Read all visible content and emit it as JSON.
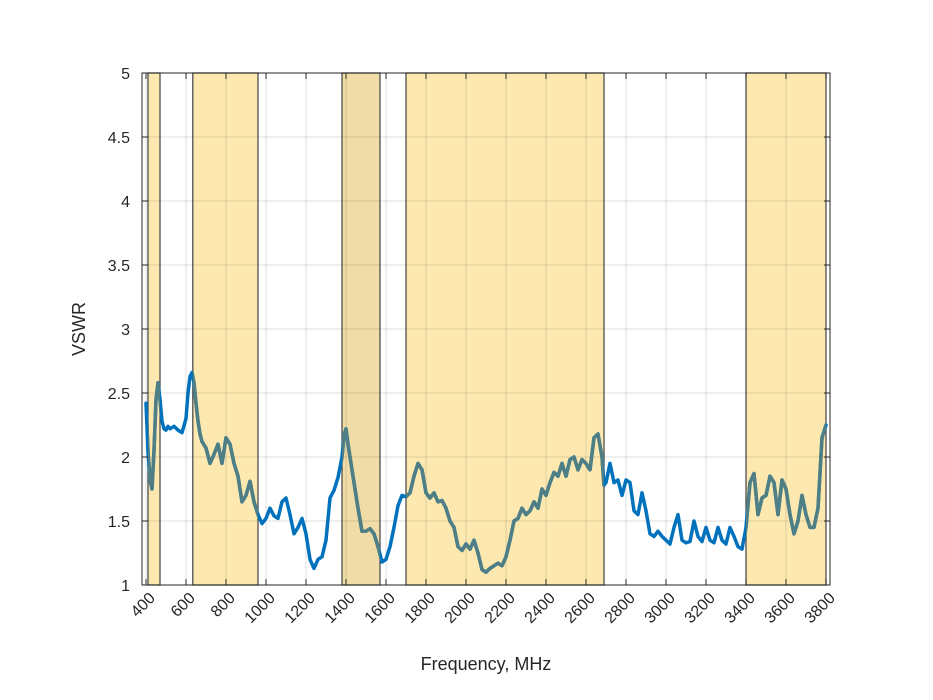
{
  "chart_data": {
    "type": "line",
    "xlabel": "Frequency, MHz",
    "ylabel": "VSWR",
    "xlim": [
      380,
      3820
    ],
    "ylim": [
      1,
      5
    ],
    "x_ticks": [
      400,
      600,
      800,
      1000,
      1200,
      1400,
      1600,
      1800,
      2000,
      2200,
      2400,
      2600,
      2800,
      3000,
      3200,
      3400,
      3600,
      3800
    ],
    "y_ticks": [
      1,
      1.5,
      2,
      2.5,
      3,
      3.5,
      4,
      4.5,
      5
    ],
    "y_tick_labels": [
      "1",
      "1.5",
      "2",
      "2.5",
      "3",
      "3.5",
      "4",
      "4.5",
      "5"
    ],
    "grid": true,
    "highlight_bands": [
      {
        "start": 410,
        "end": 470,
        "color": "#fde9b0"
      },
      {
        "start": 634,
        "end": 960,
        "color": "#fde9b0"
      },
      {
        "start": 1380,
        "end": 1570,
        "color": "#efdca6"
      },
      {
        "start": 1700,
        "end": 2690,
        "color": "#fde9b0"
      },
      {
        "start": 3400,
        "end": 3800,
        "color": "#fde9b0"
      }
    ],
    "series": [
      {
        "color": "#0072bd",
        "band_color": "#4f7f84",
        "points": [
          [
            400,
            2.42
          ],
          [
            410,
            2.05
          ],
          [
            420,
            1.82
          ],
          [
            430,
            1.75
          ],
          [
            440,
            2.05
          ],
          [
            450,
            2.45
          ],
          [
            460,
            2.58
          ],
          [
            470,
            2.45
          ],
          [
            480,
            2.28
          ],
          [
            490,
            2.22
          ],
          [
            500,
            2.21
          ],
          [
            510,
            2.24
          ],
          [
            520,
            2.22
          ],
          [
            540,
            2.24
          ],
          [
            560,
            2.21
          ],
          [
            580,
            2.19
          ],
          [
            600,
            2.3
          ],
          [
            610,
            2.5
          ],
          [
            620,
            2.63
          ],
          [
            630,
            2.66
          ],
          [
            640,
            2.58
          ],
          [
            650,
            2.42
          ],
          [
            660,
            2.28
          ],
          [
            670,
            2.18
          ],
          [
            680,
            2.12
          ],
          [
            700,
            2.07
          ],
          [
            720,
            1.95
          ],
          [
            740,
            2.02
          ],
          [
            760,
            2.1
          ],
          [
            780,
            1.95
          ],
          [
            800,
            2.15
          ],
          [
            820,
            2.1
          ],
          [
            840,
            1.95
          ],
          [
            860,
            1.85
          ],
          [
            880,
            1.65
          ],
          [
            900,
            1.7
          ],
          [
            920,
            1.81
          ],
          [
            940,
            1.65
          ],
          [
            960,
            1.55
          ],
          [
            980,
            1.48
          ],
          [
            1000,
            1.52
          ],
          [
            1020,
            1.6
          ],
          [
            1040,
            1.54
          ],
          [
            1060,
            1.52
          ],
          [
            1080,
            1.65
          ],
          [
            1100,
            1.68
          ],
          [
            1120,
            1.55
          ],
          [
            1140,
            1.4
          ],
          [
            1160,
            1.45
          ],
          [
            1180,
            1.52
          ],
          [
            1200,
            1.4
          ],
          [
            1220,
            1.2
          ],
          [
            1240,
            1.13
          ],
          [
            1260,
            1.2
          ],
          [
            1280,
            1.22
          ],
          [
            1300,
            1.35
          ],
          [
            1320,
            1.68
          ],
          [
            1340,
            1.74
          ],
          [
            1360,
            1.84
          ],
          [
            1380,
            2.0
          ],
          [
            1390,
            2.17
          ],
          [
            1400,
            2.22
          ],
          [
            1410,
            2.1
          ],
          [
            1420,
            2.0
          ],
          [
            1440,
            1.8
          ],
          [
            1460,
            1.6
          ],
          [
            1480,
            1.42
          ],
          [
            1500,
            1.42
          ],
          [
            1520,
            1.44
          ],
          [
            1540,
            1.4
          ],
          [
            1560,
            1.3
          ],
          [
            1580,
            1.18
          ],
          [
            1600,
            1.2
          ],
          [
            1620,
            1.3
          ],
          [
            1640,
            1.45
          ],
          [
            1660,
            1.62
          ],
          [
            1680,
            1.7
          ],
          [
            1700,
            1.69
          ],
          [
            1720,
            1.72
          ],
          [
            1740,
            1.85
          ],
          [
            1760,
            1.95
          ],
          [
            1780,
            1.9
          ],
          [
            1800,
            1.72
          ],
          [
            1820,
            1.68
          ],
          [
            1840,
            1.72
          ],
          [
            1860,
            1.65
          ],
          [
            1880,
            1.66
          ],
          [
            1900,
            1.6
          ],
          [
            1920,
            1.5
          ],
          [
            1940,
            1.45
          ],
          [
            1960,
            1.3
          ],
          [
            1980,
            1.27
          ],
          [
            2000,
            1.32
          ],
          [
            2020,
            1.28
          ],
          [
            2040,
            1.35
          ],
          [
            2060,
            1.25
          ],
          [
            2080,
            1.12
          ],
          [
            2100,
            1.1
          ],
          [
            2120,
            1.13
          ],
          [
            2140,
            1.15
          ],
          [
            2160,
            1.17
          ],
          [
            2180,
            1.15
          ],
          [
            2200,
            1.22
          ],
          [
            2220,
            1.35
          ],
          [
            2240,
            1.5
          ],
          [
            2260,
            1.52
          ],
          [
            2280,
            1.6
          ],
          [
            2300,
            1.55
          ],
          [
            2320,
            1.58
          ],
          [
            2340,
            1.65
          ],
          [
            2360,
            1.6
          ],
          [
            2380,
            1.75
          ],
          [
            2400,
            1.7
          ],
          [
            2420,
            1.8
          ],
          [
            2440,
            1.88
          ],
          [
            2460,
            1.85
          ],
          [
            2480,
            1.95
          ],
          [
            2500,
            1.85
          ],
          [
            2520,
            1.98
          ],
          [
            2540,
            2.0
          ],
          [
            2560,
            1.9
          ],
          [
            2580,
            1.98
          ],
          [
            2600,
            1.95
          ],
          [
            2620,
            1.9
          ],
          [
            2640,
            2.15
          ],
          [
            2660,
            2.18
          ],
          [
            2680,
            2.0
          ],
          [
            2690,
            1.78
          ],
          [
            2700,
            1.8
          ],
          [
            2720,
            1.95
          ],
          [
            2740,
            1.8
          ],
          [
            2760,
            1.82
          ],
          [
            2780,
            1.7
          ],
          [
            2800,
            1.82
          ],
          [
            2820,
            1.8
          ],
          [
            2840,
            1.58
          ],
          [
            2860,
            1.55
          ],
          [
            2880,
            1.72
          ],
          [
            2900,
            1.58
          ],
          [
            2920,
            1.4
          ],
          [
            2940,
            1.38
          ],
          [
            2960,
            1.42
          ],
          [
            2980,
            1.38
          ],
          [
            3000,
            1.35
          ],
          [
            3020,
            1.32
          ],
          [
            3040,
            1.45
          ],
          [
            3060,
            1.55
          ],
          [
            3080,
            1.35
          ],
          [
            3100,
            1.33
          ],
          [
            3120,
            1.34
          ],
          [
            3140,
            1.5
          ],
          [
            3160,
            1.38
          ],
          [
            3180,
            1.34
          ],
          [
            3200,
            1.45
          ],
          [
            3220,
            1.35
          ],
          [
            3240,
            1.33
          ],
          [
            3260,
            1.45
          ],
          [
            3280,
            1.35
          ],
          [
            3300,
            1.32
          ],
          [
            3320,
            1.45
          ],
          [
            3340,
            1.38
          ],
          [
            3360,
            1.3
          ],
          [
            3380,
            1.28
          ],
          [
            3400,
            1.45
          ],
          [
            3420,
            1.8
          ],
          [
            3440,
            1.87
          ],
          [
            3460,
            1.55
          ],
          [
            3480,
            1.68
          ],
          [
            3500,
            1.7
          ],
          [
            3520,
            1.85
          ],
          [
            3540,
            1.8
          ],
          [
            3560,
            1.55
          ],
          [
            3580,
            1.82
          ],
          [
            3600,
            1.75
          ],
          [
            3620,
            1.55
          ],
          [
            3640,
            1.4
          ],
          [
            3660,
            1.5
          ],
          [
            3680,
            1.7
          ],
          [
            3700,
            1.55
          ],
          [
            3720,
            1.45
          ],
          [
            3740,
            1.45
          ],
          [
            3760,
            1.6
          ],
          [
            3780,
            2.15
          ],
          [
            3800,
            2.25
          ]
        ]
      }
    ]
  }
}
